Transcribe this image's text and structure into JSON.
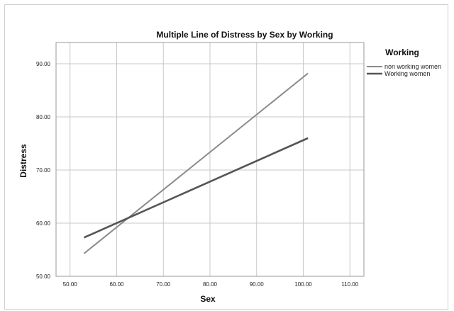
{
  "chart_data": {
    "type": "line",
    "title": "Multiple Line of Distress by Sex by Working",
    "xlabel": "Sex",
    "ylabel": "Distress",
    "xlim": [
      47.0,
      113.0
    ],
    "ylim": [
      50.0,
      94.0
    ],
    "x_ticks": [
      "50.00",
      "60.00",
      "70.00",
      "80.00",
      "90.00",
      "100.00",
      "110.00"
    ],
    "x_tick_values": [
      50,
      60,
      70,
      80,
      90,
      100,
      110
    ],
    "y_ticks": [
      "50.00",
      "60.00",
      "70.00",
      "80.00",
      "90.00"
    ],
    "y_tick_values": [
      50,
      60,
      70,
      80,
      90
    ],
    "grid": true,
    "legend": {
      "title": "Working",
      "placement": "right"
    },
    "series": [
      {
        "name": "non working women",
        "color": "#8a8a8a",
        "x": [
          53.0,
          101.0
        ],
        "y": [
          54.3,
          88.2
        ]
      },
      {
        "name": "Working women",
        "color": "#555555",
        "x": [
          53.0,
          101.0
        ],
        "y": [
          57.3,
          76.0
        ]
      }
    ]
  }
}
